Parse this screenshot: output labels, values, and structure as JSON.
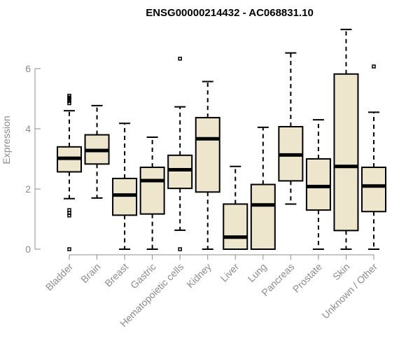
{
  "chart_data": {
    "type": "boxplot",
    "title": "ENSG00000214432 - AC068831.10",
    "ylabel": "Expression",
    "xlabel": "",
    "ylim": [
      0,
      7.3
    ],
    "yticks": [
      0,
      2,
      4,
      6
    ],
    "grid": false,
    "categories": [
      "Bladder",
      "Brain",
      "Breast",
      "Gastric",
      "Hematopoietic cells",
      "Kidney",
      "Liver",
      "Lung",
      "Pancreas",
      "Prostate",
      "Skin",
      "Unknown / Other"
    ],
    "boxes": [
      {
        "whisker_low": 1.68,
        "q1": 2.57,
        "median": 3.02,
        "q3": 3.4,
        "whisker_high": 4.6,
        "outliers": [
          0.0,
          1.12,
          1.2,
          1.3,
          4.85,
          4.92,
          4.98,
          5.04,
          5.1
        ]
      },
      {
        "whisker_low": 1.7,
        "q1": 2.83,
        "median": 3.28,
        "q3": 3.8,
        "whisker_high": 4.77,
        "outliers": []
      },
      {
        "whisker_low": 0.0,
        "q1": 1.13,
        "median": 1.8,
        "q3": 2.35,
        "whisker_high": 4.18,
        "outliers": []
      },
      {
        "whisker_low": 0.0,
        "q1": 1.17,
        "median": 2.28,
        "q3": 2.72,
        "whisker_high": 3.72,
        "outliers": []
      },
      {
        "whisker_low": 0.63,
        "q1": 2.02,
        "median": 2.64,
        "q3": 3.12,
        "whisker_high": 4.73,
        "outliers": [
          0.0,
          6.33
        ]
      },
      {
        "whisker_low": 0.0,
        "q1": 1.9,
        "median": 3.67,
        "q3": 4.37,
        "whisker_high": 5.57,
        "outliers": []
      },
      {
        "whisker_low": 0.0,
        "q1": 0.0,
        "median": 0.4,
        "q3": 1.5,
        "whisker_high": 2.75,
        "outliers": []
      },
      {
        "whisker_low": 0.0,
        "q1": 0.0,
        "median": 1.47,
        "q3": 2.15,
        "whisker_high": 4.05,
        "outliers": []
      },
      {
        "whisker_low": 1.5,
        "q1": 2.27,
        "median": 3.13,
        "q3": 4.07,
        "whisker_high": 6.52,
        "outliers": []
      },
      {
        "whisker_low": 0.0,
        "q1": 1.3,
        "median": 2.08,
        "q3": 3.0,
        "whisker_high": 4.3,
        "outliers": []
      },
      {
        "whisker_low": 0.0,
        "q1": 0.62,
        "median": 2.75,
        "q3": 5.82,
        "whisker_high": 7.3,
        "outliers": []
      },
      {
        "whisker_low": 0.0,
        "q1": 1.25,
        "median": 2.1,
        "q3": 2.72,
        "whisker_high": 4.55,
        "outliers": [
          6.07
        ]
      }
    ],
    "colors": {
      "box_fill": "#ede6cc",
      "box_stroke": "#000000",
      "axis": "#8c8c8c"
    }
  }
}
